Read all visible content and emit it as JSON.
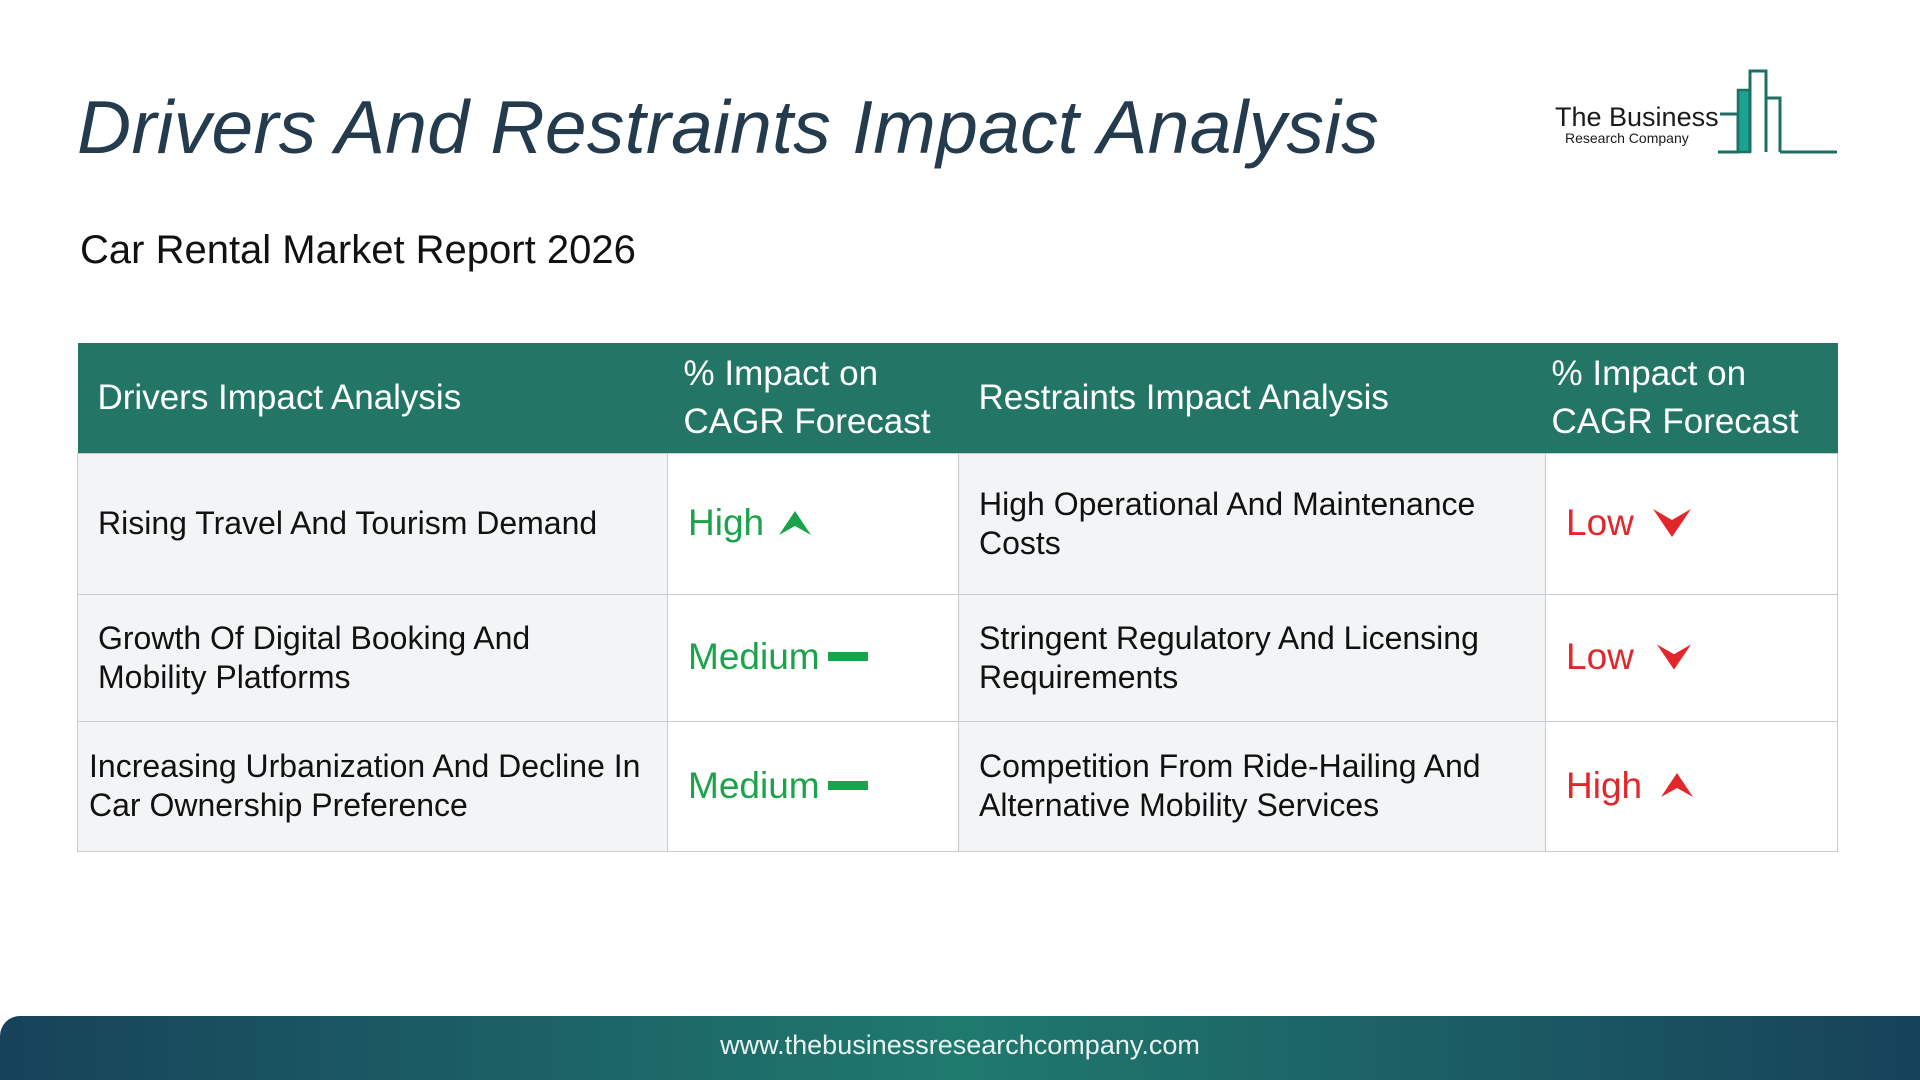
{
  "title": "Drivers And Restraints Impact Analysis",
  "subtitle": "Car Rental Market Report 2026",
  "logo": {
    "name": "The Business",
    "sub": "Research Company"
  },
  "table": {
    "headers": {
      "drivers": "Drivers Impact Analysis",
      "drivers_impact_1": "% Impact on",
      "drivers_impact_2": "CAGR Forecast",
      "restraints": "Restraints Impact Analysis",
      "restraints_impact_1": "% Impact on",
      "restraints_impact_2": "CAGR Forecast"
    },
    "rows": [
      {
        "driver": "Rising Travel And Tourism Demand",
        "driver_level": "High",
        "driver_indicator": "up-arrow-icon",
        "restraint": "High Operational And Maintenance Costs",
        "restraint_level": "Low",
        "restraint_indicator": "down-arrow-icon"
      },
      {
        "driver": "Growth Of Digital Booking And Mobility Platforms",
        "driver_level": "Medium",
        "driver_indicator": "dash-icon",
        "restraint": "Stringent Regulatory And Licensing Requirements",
        "restraint_level": "Low",
        "restraint_indicator": "down-arrow-icon"
      },
      {
        "driver": "Increasing Urbanization And Decline In Car Ownership Preference",
        "driver_level": "Medium",
        "driver_indicator": "dash-icon",
        "restraint": "Competition From Ride-Hailing And Alternative Mobility Services",
        "restraint_level": "High",
        "restraint_indicator": "up-arrow-icon"
      }
    ]
  },
  "colors": {
    "header_bg": "#237665",
    "driver_level": "#1aa34a",
    "restraint_level": "#e3262b",
    "title": "#243a4d"
  },
  "footer": {
    "url": "www.thebusinessresearchcompany.com"
  }
}
